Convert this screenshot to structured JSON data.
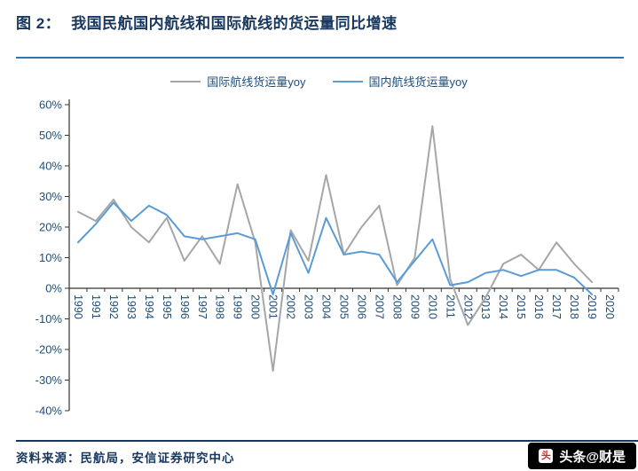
{
  "header": {
    "figure_label": "图 2：",
    "title": "我国民航国内航线和国际航线的货运量同比增速"
  },
  "colors": {
    "title_navy": "#17375E",
    "title_rule_blue": "#2E75B6",
    "axis_label_navy": "#1F4E79",
    "series_international_gray": "#A6A6A6",
    "series_domestic_blue": "#5B9BD5",
    "watermark_bg": "#000000",
    "watermark_fg": "#FFFFFF"
  },
  "legend": [
    {
      "label": "国际航线货运量yoy",
      "color": "#A6A6A6"
    },
    {
      "label": "国内航线货运量yoy",
      "color": "#5B9BD5"
    }
  ],
  "chart_data": {
    "type": "line",
    "title": "我国民航国内航线和国际航线的货运量同比增速",
    "categories": [
      "1990",
      "1991",
      "1992",
      "1993",
      "1994",
      "1995",
      "1996",
      "1997",
      "1998",
      "1999",
      "2000",
      "2001",
      "2002",
      "2003",
      "2004",
      "2005",
      "2006",
      "2007",
      "2008",
      "2009",
      "2010",
      "2011",
      "2012",
      "2013",
      "2014",
      "2015",
      "2016",
      "2017",
      "2018",
      "2019",
      "2020"
    ],
    "series": [
      {
        "id": "international",
        "name": "国际航线货运量yoy",
        "color": "#A6A6A6",
        "values": [
          25,
          22,
          29,
          20,
          15,
          23,
          9,
          17,
          8,
          34,
          15,
          -27,
          19,
          9,
          37,
          11,
          20,
          27,
          1,
          10,
          53,
          3,
          -12,
          -3,
          8,
          11,
          6,
          15,
          8,
          2,
          null
        ]
      },
      {
        "id": "domestic",
        "name": "国内航线货运量yoy",
        "color": "#5B9BD5",
        "values": [
          15,
          21,
          28,
          22,
          27,
          24,
          17,
          16,
          17,
          18,
          16,
          -2,
          18,
          5,
          23,
          11,
          12,
          11,
          2,
          9,
          16,
          1,
          2,
          5,
          6,
          4,
          6,
          6,
          3.5,
          -2,
          null
        ]
      }
    ],
    "xlabel": "",
    "ylabel": "",
    "ylim": [
      -40,
      60
    ],
    "ytick_step": 10,
    "ytick_format": "percent",
    "grid": false,
    "legend_position": "top",
    "x_label_rotation": 90
  },
  "footer": {
    "source_text": "资料来源：民航局，安信证券研究中心"
  },
  "watermark": {
    "text": "头条@财是",
    "icon_char": "头"
  }
}
